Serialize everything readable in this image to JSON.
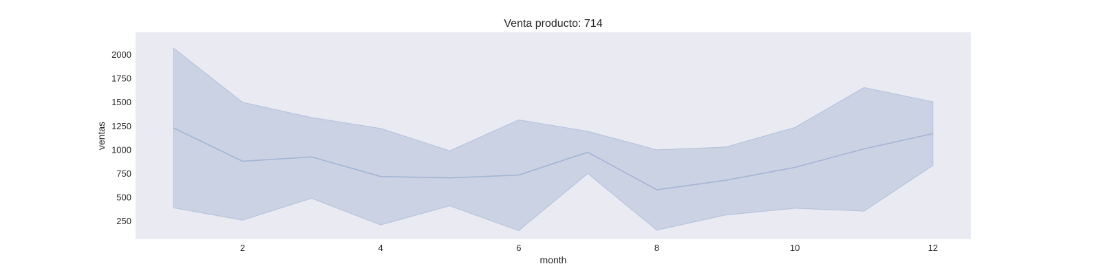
{
  "chart_data": {
    "type": "line",
    "title": "Venta producto: 714",
    "xlabel": "month",
    "ylabel": "ventas",
    "x": [
      1,
      2,
      3,
      4,
      5,
      6,
      7,
      8,
      9,
      10,
      11,
      12
    ],
    "series": [
      {
        "values": [
          1230,
          880,
          925,
          720,
          705,
          735,
          975,
          580,
          680,
          815,
          1010,
          1170
        ],
        "band_upper": [
          2070,
          1500,
          1340,
          1225,
          990,
          1315,
          1195,
          1000,
          1030,
          1235,
          1655,
          1505
        ],
        "band_lower": [
          390,
          260,
          490,
          210,
          410,
          150,
          750,
          155,
          315,
          385,
          355,
          835
        ],
        "color": "#4c72b0"
      }
    ],
    "xticks": [
      2,
      4,
      6,
      8,
      10,
      12
    ],
    "yticks": [
      250,
      500,
      750,
      1000,
      1250,
      1500,
      1750,
      2000
    ],
    "xlim": [
      0.45,
      12.55
    ],
    "ylim": [
      60,
      2235
    ],
    "grid": false,
    "background": "#eaeaf2"
  }
}
